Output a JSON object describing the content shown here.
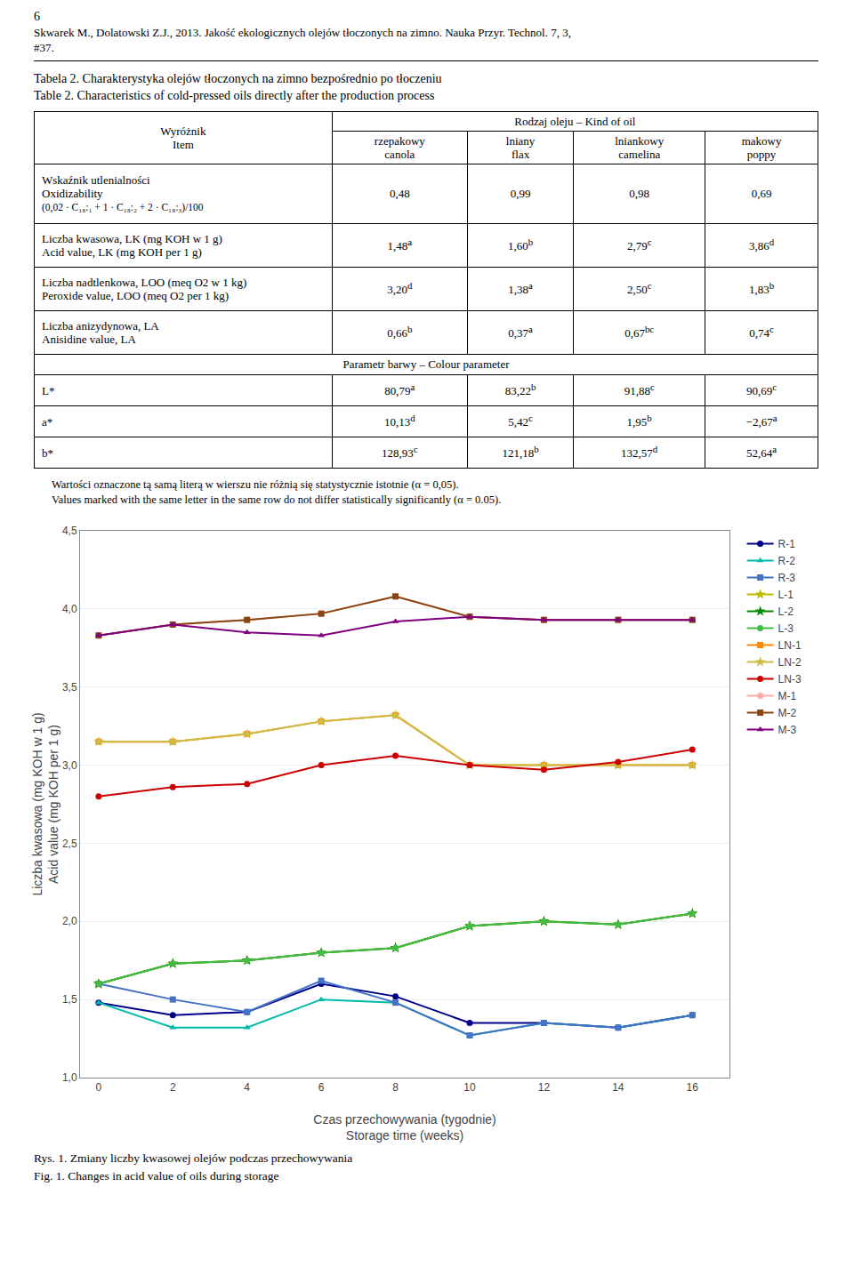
{
  "chart_data": [
    {
      "type": "table",
      "header": [
        "6",
        "Skwarek M., Dolatowski Z.J., 2013. Jakość ekologicznych olejów tłoczonych na zimno. Nauka Przyr. Technol. 7, 3,",
        "#37."
      ],
      "title": "Tabela 2. Charakterystyka olejów tłoczonych na zimno bezpośrednio po tłoczeniu",
      "subtitle": "Table 2. Characteristics of cold-pressed oils directly after the production process",
      "column_group": "Rodzaj oleju – Kind of oil",
      "item_header": [
        "Wyróżnik",
        "Item"
      ],
      "columns": [
        [
          "rzepakowy",
          "canola"
        ],
        [
          "lniany",
          "flax"
        ],
        [
          "lniankowy",
          "camelina"
        ],
        [
          "makowy",
          "poppy"
        ]
      ],
      "rows": [
        {
          "label": [
            "Wskaźnik utlenialności",
            "Oxidizability",
            "(0,02 · C₁₈:₁ + 1 · C₁₈:₂ + 2 · C₁₈:₃)/100"
          ],
          "values": [
            "0,48",
            "0,99",
            "0,98",
            "0,69"
          ],
          "superscripts": [
            "",
            "",
            "",
            ""
          ]
        },
        {
          "label": [
            "Liczba kwasowa, LK (mg KOH w 1 g)",
            "Acid value, LK (mg KOH per 1 g)"
          ],
          "values": [
            "1,48",
            "1,60",
            "2,79",
            "3,86"
          ],
          "superscripts": [
            "a",
            "b",
            "c",
            "d"
          ]
        },
        {
          "label": [
            "Liczba nadtlenkowa, LOO (meq O2 w 1 kg)",
            "Peroxide value, LOO (meq O2 per 1 kg)"
          ],
          "values": [
            "3,20",
            "1,38",
            "2,50",
            "1,83"
          ],
          "superscripts": [
            "d",
            "a",
            "c",
            "b"
          ]
        },
        {
          "label": [
            "Liczba anizydynowa, LA",
            "Anisidine value, LA"
          ],
          "values": [
            "0,66",
            "0,37",
            "0,67",
            "0,74"
          ],
          "superscripts": [
            "b",
            "a",
            "bc",
            "c"
          ]
        }
      ],
      "sections": [
        {
          "label": "Parametr barwy – Colour parameter",
          "rows": [
            {
              "label": [
                "L*"
              ],
              "values": [
                "80,79",
                "83,22",
                "91,88",
                "90,69"
              ],
              "superscripts": [
                "a",
                "b",
                "c",
                "c"
              ]
            },
            {
              "label": [
                "a*"
              ],
              "values": [
                "10,13",
                "5,42",
                "1,95",
                "−2,67"
              ],
              "superscripts": [
                "d",
                "c",
                "b",
                "a"
              ]
            },
            {
              "label": [
                "b*"
              ],
              "values": [
                "128,93",
                "121,18",
                "132,57",
                "52,64"
              ],
              "superscripts": [
                "c",
                "b",
                "d",
                "a"
              ]
            }
          ]
        }
      ],
      "footnotes": [
        "Wartości oznaczone tą samą literą w wierszu nie różnią się statystycznie istotnie (α = 0,05).",
        "Values marked with the same letter in the same row do not differ statistically significantly (α = 0.05)."
      ]
    },
    {
      "type": "line",
      "title": "Rys. 1. Zmiany liczby kwasowej olejów podczas przechowywania",
      "subtitle": "Fig. 1. Changes in acid value of oils during storage",
      "xlabel": [
        "Czas przechowywania (tygodnie)",
        "Storage time (weeks)"
      ],
      "ylabel": [
        "Liczba kwasowa (mg KOH w 1 g)",
        "Acid value (mg KOH per 1 g)"
      ],
      "x": [
        0,
        2,
        4,
        6,
        8,
        10,
        12,
        14,
        16
      ],
      "series": [
        {
          "name": "R-1",
          "color": "#00008B",
          "marker": "circle",
          "values": [
            1.48,
            1.4,
            1.42,
            1.6,
            1.52,
            1.35,
            1.35,
            1.32,
            1.4
          ]
        },
        {
          "name": "R-2",
          "color": "#00BBAA",
          "marker": "triangle-up",
          "values": [
            1.48,
            1.32,
            1.32,
            1.5,
            1.48,
            1.27,
            1.35,
            1.32,
            1.4
          ]
        },
        {
          "name": "R-3",
          "color": "#4472C4",
          "marker": "square",
          "values": [
            1.6,
            1.5,
            1.42,
            1.62,
            1.48,
            1.27,
            1.35,
            1.32,
            1.4
          ]
        },
        {
          "name": "L-1",
          "color": "#BBBB00",
          "marker": "star",
          "values": [
            1.6,
            1.73,
            1.75,
            1.8,
            1.83,
            1.97,
            2.0,
            1.98,
            2.05
          ]
        },
        {
          "name": "L-2",
          "color": "#008800",
          "marker": "star",
          "values": [
            1.6,
            1.73,
            1.75,
            1.8,
            1.83,
            1.97,
            2.0,
            1.98,
            2.05
          ]
        },
        {
          "name": "L-3",
          "color": "#44BB44",
          "marker": "circle",
          "values": [
            1.6,
            1.73,
            1.75,
            1.8,
            1.83,
            1.97,
            2.0,
            1.98,
            2.05
          ]
        },
        {
          "name": "LN-1",
          "color": "#FF8800",
          "marker": "square",
          "values": [
            3.15,
            3.15,
            3.2,
            3.28,
            3.32,
            3.0,
            3.0,
            3.0,
            3.0
          ]
        },
        {
          "name": "LN-2",
          "color": "#CCBB44",
          "marker": "star",
          "values": [
            3.15,
            3.15,
            3.2,
            3.28,
            3.32,
            3.0,
            3.0,
            3.0,
            3.0
          ]
        },
        {
          "name": "LN-3",
          "color": "#CC0000",
          "marker": "circle",
          "values": [
            2.8,
            2.86,
            2.88,
            3.0,
            3.06,
            3.0,
            2.97,
            3.02,
            3.1
          ]
        },
        {
          "name": "M-1",
          "color": "#FFAAAA",
          "marker": "circle",
          "values": [
            3.83,
            3.9,
            3.93,
            3.97,
            4.08,
            3.95,
            3.93,
            3.93,
            3.93
          ]
        },
        {
          "name": "M-2",
          "color": "#8B4513",
          "marker": "square",
          "values": [
            3.83,
            3.9,
            3.93,
            3.97,
            4.08,
            3.95,
            3.93,
            3.93,
            3.93
          ]
        },
        {
          "name": "M-3",
          "color": "#800080",
          "marker": "triangle-up",
          "values": [
            3.83,
            3.9,
            3.85,
            3.83,
            3.92,
            3.95,
            3.93,
            3.93,
            3.93
          ]
        }
      ],
      "xlim": [
        -0.5,
        17
      ],
      "xticks": [
        0,
        2,
        4,
        6,
        8,
        10,
        12,
        14,
        16
      ],
      "ylim": [
        1.0,
        4.5
      ],
      "yticks": [
        {
          "value": 1.0,
          "label": "1,0"
        },
        {
          "value": 1.5,
          "label": "1,5"
        },
        {
          "value": 2.0,
          "label": "2,0"
        },
        {
          "value": 2.5,
          "label": "2,5"
        },
        {
          "value": 3.0,
          "label": "3,0"
        },
        {
          "value": 3.5,
          "label": "3,5"
        },
        {
          "value": 4.0,
          "label": "4,0"
        },
        {
          "value": 4.5,
          "label": "4,5"
        }
      ],
      "grid": "y",
      "legend": "right"
    }
  ]
}
